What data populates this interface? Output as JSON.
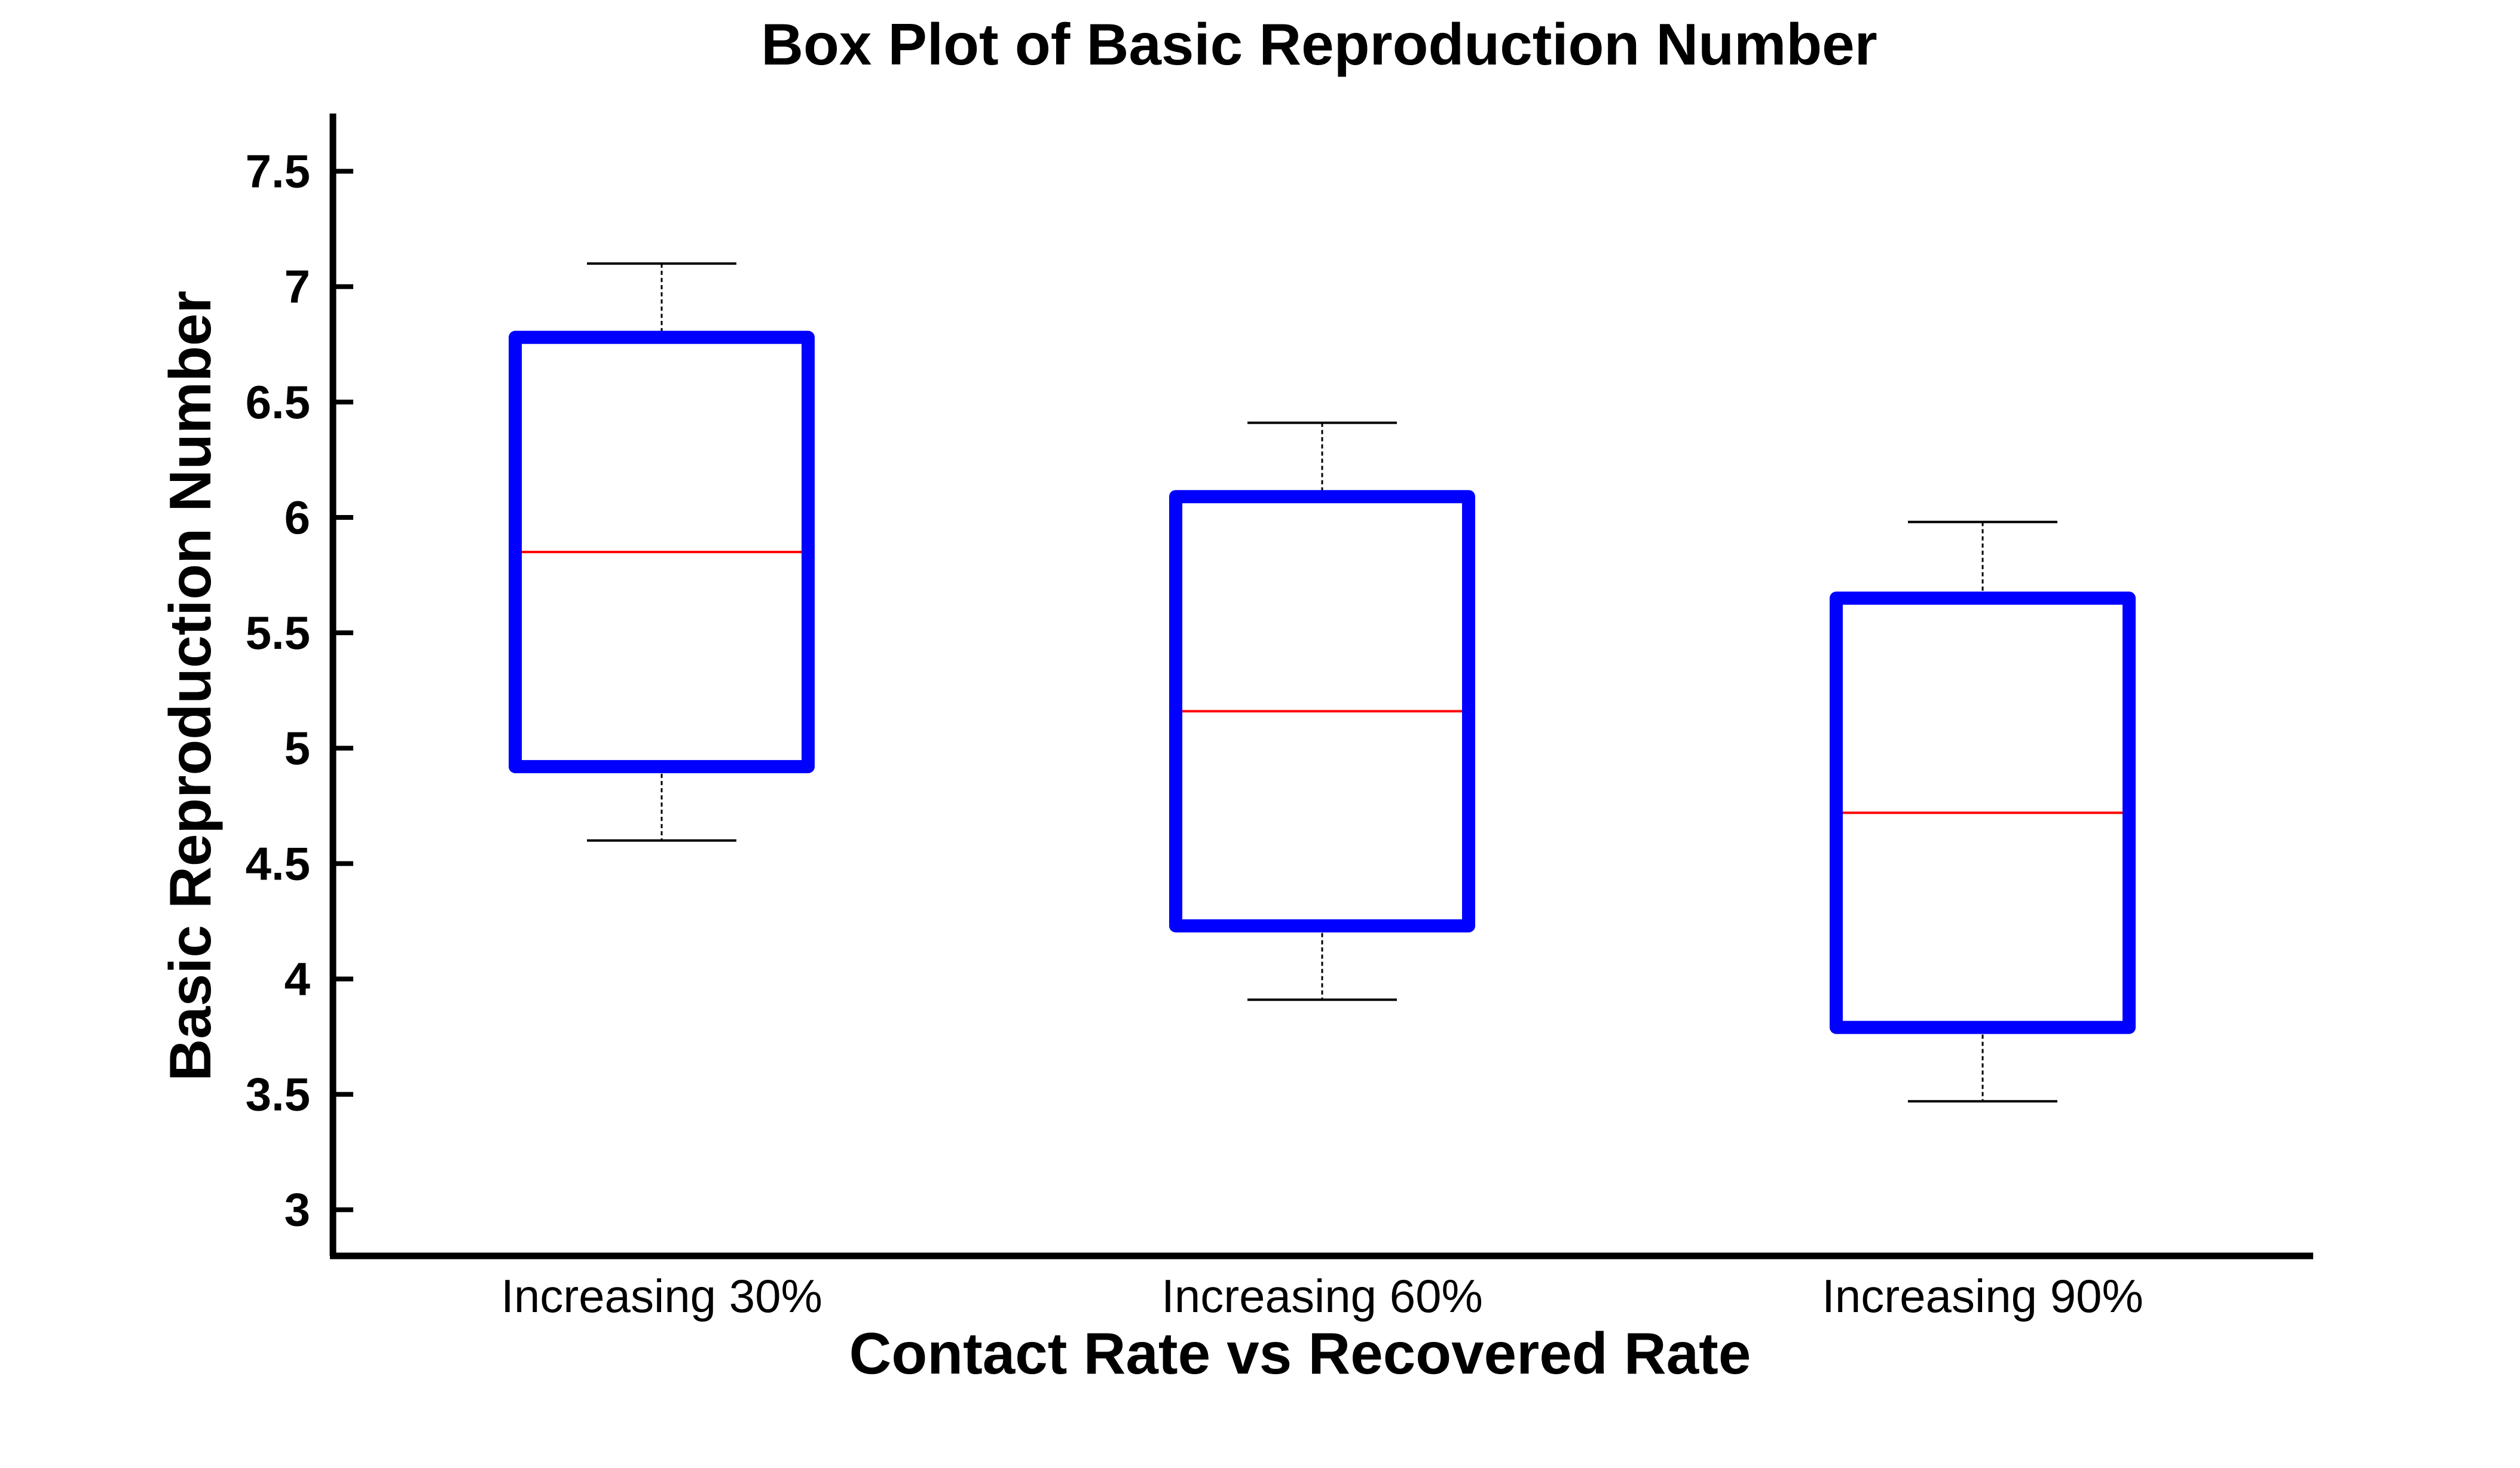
{
  "chart_data": {
    "type": "box",
    "title": "Box Plot of Basic Reproduction Number",
    "xlabel": "Contact Rate vs Recovered Rate",
    "ylabel": "Basic Reproduction Number",
    "ylim": [
      2.8,
      7.75
    ],
    "yticks": [
      3,
      3.5,
      4,
      4.5,
      5,
      5.5,
      6,
      6.5,
      7,
      7.5
    ],
    "ytick_labels": [
      "3",
      "3.5",
      "4",
      "4.5",
      "5",
      "5.5",
      "6",
      "6.5",
      "7",
      "7.5"
    ],
    "grid": false,
    "categories": [
      "Increasing 30%",
      "Increasing 60%",
      "Increasing 90%"
    ],
    "boxes": [
      {
        "category": "Increasing 30%",
        "whisker_low": 4.6,
        "q1": 4.92,
        "median": 5.85,
        "q3": 6.78,
        "whisker_high": 7.1
      },
      {
        "category": "Increasing 60%",
        "whisker_low": 3.91,
        "q1": 4.23,
        "median": 5.16,
        "q3": 6.09,
        "whisker_high": 6.41
      },
      {
        "category": "Increasing 90%",
        "whisker_low": 3.47,
        "q1": 3.79,
        "median": 4.72,
        "q3": 5.65,
        "whisker_high": 5.98
      }
    ],
    "colors": {
      "box": "#0000ff",
      "median": "#ff0000",
      "whisker": "#000000",
      "axis": "#000000"
    }
  }
}
